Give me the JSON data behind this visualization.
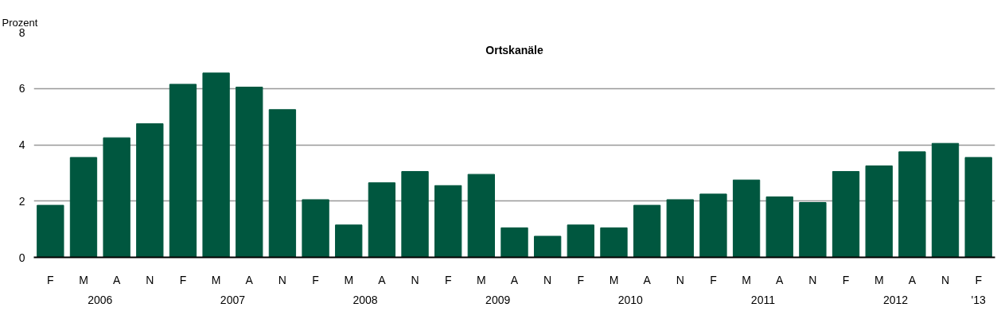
{
  "chart_data": {
    "type": "bar",
    "title": "Ortskanäle",
    "ylabel": "Prozent",
    "categories": [
      "F",
      "M",
      "A",
      "N",
      "F",
      "M",
      "A",
      "N",
      "F",
      "M",
      "A",
      "N",
      "F",
      "M",
      "A",
      "N",
      "F",
      "M",
      "A",
      "N",
      "F",
      "M",
      "A",
      "N",
      "F",
      "M",
      "A",
      "N",
      "F"
    ],
    "values": [
      1.85,
      3.55,
      4.25,
      4.75,
      6.15,
      6.55,
      6.05,
      5.25,
      2.05,
      1.15,
      2.65,
      3.05,
      2.55,
      2.95,
      1.05,
      0.75,
      1.15,
      1.05,
      1.85,
      2.05,
      2.25,
      2.75,
      2.15,
      1.95,
      3.05,
      3.25,
      3.75,
      4.05,
      3.55
    ],
    "color": "#00573f",
    "ylim": [
      0,
      8
    ],
    "yticks": [
      0,
      2,
      4,
      6,
      8
    ],
    "grid": "y",
    "annotations": [
      "2006",
      "2007",
      "2008",
      "2009",
      "2010",
      "2011",
      "2012",
      "'13"
    ]
  }
}
